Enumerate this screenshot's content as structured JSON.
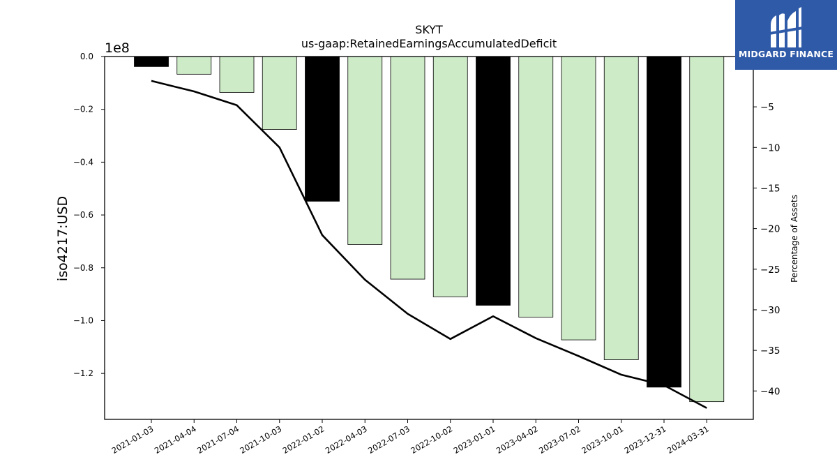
{
  "chart_data": {
    "type": "bar",
    "title": "SKYT",
    "subtitle": "us-gaap:RetainedEarningsAccumulatedDeficit",
    "ylabel": "iso4217:USD",
    "y2label": "Percentage of Assets",
    "offset_text": "1e8",
    "categories": [
      "2021-01-03",
      "2021-04-04",
      "2021-07-04",
      "2021-10-03",
      "2022-01-02",
      "2022-04-03",
      "2022-07-03",
      "2022-10-02",
      "2023-01-01",
      "2023-04-02",
      "2023-07-02",
      "2023-10-01",
      "2023-12-31",
      "2024-03-31"
    ],
    "values": [
      -3800000,
      -6700000,
      -13600000,
      -27600000,
      -54800000,
      -71200000,
      -84300000,
      -91000000,
      -94200000,
      -98700000,
      -107300000,
      -114800000,
      -125200000,
      -130700000
    ],
    "bar_colors": [
      "#000000",
      "#ceebc8",
      "#ceebc8",
      "#ceebc8",
      "#000000",
      "#ceebc8",
      "#ceebc8",
      "#ceebc8",
      "#000000",
      "#ceebc8",
      "#ceebc8",
      "#ceebc8",
      "#000000",
      "#ceebc8"
    ],
    "series": [
      {
        "axis": "right",
        "type": "line",
        "color": "#000000",
        "values": [
          -1.8,
          -3.1,
          -4.8,
          -10.0,
          -20.8,
          -26.3,
          -30.5,
          -33.6,
          -30.8,
          -33.5,
          -35.7,
          -38.0,
          -39.3,
          -42.1
        ]
      }
    ],
    "ylim": [
      -137400000,
      0
    ],
    "y2lim": [
      -43.5,
      1.2
    ],
    "yticks": [
      0.0,
      -0.2,
      -0.4,
      -0.6,
      -0.8,
      -1.0,
      -1.2
    ],
    "ytick_labels": [
      "0.0",
      "−0.2",
      "−0.4",
      "−0.6",
      "−0.8",
      "−1.0",
      "−1.2"
    ],
    "y2ticks": [
      -5,
      -10,
      -15,
      -20,
      -25,
      -30,
      -35,
      -40
    ],
    "y2tick_labels": [
      "−5",
      "−10",
      "−15",
      "−20",
      "−25",
      "−30",
      "−35",
      "−40"
    ],
    "grid": false
  },
  "logo": {
    "text": "MIDGARD FINANCE"
  },
  "colors": {
    "logo_bg": "#2f5aa8",
    "bar_light": "#ceebc8",
    "bar_dark": "#000000"
  }
}
